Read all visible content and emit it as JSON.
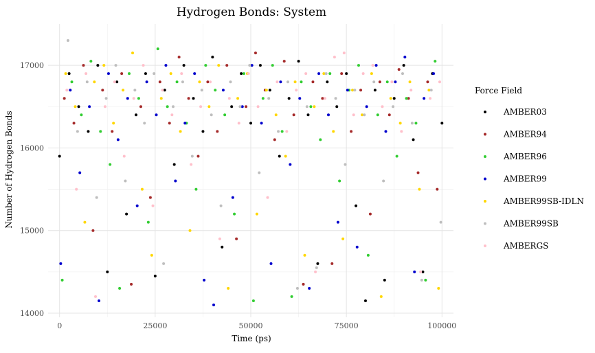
{
  "chart_data": {
    "type": "scatter",
    "title": "Hydrogen Bonds: System",
    "xlabel": "Time (ps)",
    "ylabel": "Number of Hydrogen Bonds",
    "xlim": [
      -3000,
      103000
    ],
    "ylim": [
      13950,
      17500
    ],
    "xticks": [
      0,
      25000,
      50000,
      75000,
      100000
    ],
    "xtick_labels": [
      "0",
      "25000",
      "50000",
      "75000",
      "100000"
    ],
    "yticks": [
      14000,
      15000,
      16000,
      17000
    ],
    "ytick_labels": [
      "14000",
      "15000",
      "16000",
      "17000"
    ],
    "grid": true,
    "legend": {
      "title": "Force Field",
      "position": "right"
    },
    "series": [
      {
        "name": "AMBER03",
        "color": "#000000",
        "x": [
          0,
          2500,
          5000,
          7500,
          10000,
          12500,
          15000,
          17500,
          20000,
          22500,
          25000,
          27500,
          30000,
          32500,
          35000,
          37500,
          40000,
          42500,
          45000,
          47500,
          50000,
          52500,
          55000,
          57500,
          60000,
          62500,
          65000,
          67500,
          70000,
          72500,
          75000,
          77500,
          80000,
          82500,
          85000,
          87500,
          90000,
          92500,
          95000,
          97500,
          100000
        ],
        "y": [
          15900,
          16900,
          16500,
          16200,
          17000,
          14500,
          16800,
          15200,
          16400,
          16900,
          14450,
          16700,
          15800,
          17000,
          16600,
          16200,
          17100,
          14800,
          16500,
          16900,
          16300,
          17000,
          16700,
          15900,
          16600,
          17050,
          16400,
          14600,
          16800,
          16500,
          16900,
          15300,
          14150,
          16700,
          14400,
          16600,
          17000,
          16100,
          14500,
          16900,
          16300
        ]
      },
      {
        "name": "AMBER94",
        "color": "#a52a2a",
        "x": [
          1250,
          3750,
          6250,
          8750,
          11250,
          13750,
          16250,
          18750,
          21250,
          23750,
          26250,
          28750,
          31250,
          33750,
          36250,
          38750,
          41250,
          43750,
          46250,
          48750,
          51250,
          53750,
          56250,
          58750,
          61250,
          63750,
          66250,
          68750,
          71250,
          73750,
          76250,
          78750,
          81250,
          83750,
          86250,
          88750,
          91250,
          93750,
          96250,
          98750
        ],
        "y": [
          16600,
          16300,
          17000,
          15000,
          16700,
          16200,
          16900,
          14350,
          16500,
          15400,
          16800,
          16300,
          17100,
          16600,
          15900,
          16800,
          16200,
          17000,
          14900,
          16500,
          17150,
          16700,
          16100,
          17050,
          16400,
          14350,
          16800,
          16600,
          14600,
          16900,
          16200,
          16700,
          15200,
          16800,
          16400,
          16950,
          16600,
          15700,
          16800,
          15500
        ]
      },
      {
        "name": "AMBER96",
        "color": "#32cd32",
        "x": [
          700,
          3200,
          5700,
          8200,
          10700,
          13200,
          15700,
          18200,
          20700,
          23200,
          25700,
          28200,
          30700,
          33200,
          35700,
          38200,
          40700,
          43200,
          45700,
          48200,
          50700,
          53200,
          55700,
          58200,
          60700,
          63200,
          65700,
          68200,
          70700,
          73200,
          75700,
          78200,
          80700,
          83200,
          85700,
          88200,
          90700,
          93200,
          95700,
          98200
        ],
        "y": [
          14400,
          16800,
          16400,
          17050,
          16200,
          15800,
          14300,
          16900,
          16600,
          15100,
          17200,
          16500,
          16800,
          16300,
          15500,
          17000,
          16700,
          16400,
          15200,
          16900,
          14150,
          16600,
          17000,
          16200,
          14200,
          16800,
          16500,
          16100,
          16900,
          15600,
          16700,
          17000,
          14700,
          16400,
          16800,
          15900,
          16600,
          16300,
          14400,
          17050
        ]
      },
      {
        "name": "AMBER99",
        "color": "#0000cd",
        "x": [
          300,
          2800,
          5300,
          7800,
          10300,
          12800,
          15300,
          17800,
          20300,
          22800,
          25300,
          27800,
          30300,
          32800,
          35300,
          37800,
          40300,
          42800,
          45300,
          47800,
          50300,
          52800,
          55300,
          57800,
          60300,
          62800,
          65300,
          67800,
          70300,
          72800,
          75300,
          77800,
          80300,
          82800,
          85300,
          87800,
          90300,
          92800,
          95300,
          97800
        ],
        "y": [
          14600,
          16700,
          15700,
          16500,
          14150,
          16900,
          16100,
          16600,
          15300,
          16800,
          16400,
          17000,
          15600,
          16300,
          16900,
          14400,
          14100,
          16700,
          15400,
          16500,
          17000,
          16300,
          14600,
          16800,
          15800,
          16600,
          14300,
          16900,
          16400,
          15100,
          16700,
          14800,
          16500,
          17000,
          16200,
          16800,
          17100,
          14500,
          16600,
          16900
        ]
      },
      {
        "name": "AMBER99SB-IDLN",
        "color": "#ffd700",
        "x": [
          1600,
          4100,
          6600,
          9100,
          11600,
          14100,
          16600,
          19100,
          21600,
          24100,
          26600,
          29100,
          31600,
          34100,
          36600,
          39100,
          41600,
          44100,
          46600,
          49100,
          51600,
          54100,
          56600,
          59100,
          61600,
          64100,
          66600,
          69100,
          71600,
          74100,
          76600,
          79100,
          81600,
          84100,
          86600,
          89100,
          91600,
          94100,
          96600,
          99100
        ],
        "y": [
          16900,
          16500,
          15100,
          16800,
          17000,
          16300,
          16700,
          17150,
          15500,
          14700,
          16600,
          16900,
          16200,
          15000,
          16800,
          16500,
          17000,
          14300,
          16600,
          16900,
          15200,
          16700,
          16400,
          15900,
          16800,
          14700,
          16500,
          16900,
          16200,
          14900,
          16700,
          16400,
          16900,
          14200,
          16600,
          16300,
          16800,
          15500,
          16700,
          14300
        ]
      },
      {
        "name": "AMBER99SB",
        "color": "#bebebe",
        "x": [
          2200,
          4700,
          7200,
          9700,
          12200,
          14700,
          17200,
          19700,
          22200,
          24700,
          27200,
          29700,
          32200,
          34700,
          37200,
          39700,
          42200,
          44700,
          47200,
          49700,
          52200,
          54700,
          57200,
          59700,
          62200,
          64700,
          67200,
          69700,
          72200,
          74700,
          77200,
          79700,
          82200,
          84700,
          87200,
          89700,
          92200,
          94700,
          97200,
          99700
        ],
        "y": [
          17300,
          16200,
          16800,
          15400,
          16600,
          17000,
          15600,
          16700,
          16300,
          16900,
          14600,
          16500,
          16800,
          15900,
          16700,
          16400,
          15300,
          16800,
          16500,
          17000,
          15700,
          16600,
          16200,
          16800,
          14300,
          16500,
          14550,
          16900,
          16600,
          15800,
          16700,
          16400,
          16800,
          15600,
          16500,
          16900,
          16300,
          14400,
          16700,
          15100
        ]
      },
      {
        "name": "AMBERGS",
        "color": "#ffc0cb",
        "x": [
          1900,
          4400,
          6900,
          9400,
          11900,
          14400,
          16900,
          19400,
          21900,
          24400,
          26900,
          29400,
          31900,
          34400,
          36900,
          39400,
          41900,
          44400,
          46900,
          49400,
          51900,
          54400,
          56900,
          59400,
          61900,
          64400,
          66900,
          69400,
          71900,
          74400,
          76900,
          79400,
          81900,
          84400,
          86900,
          89400,
          91900,
          94400,
          96900,
          99400
        ],
        "y": [
          16700,
          15500,
          16900,
          14200,
          16500,
          16800,
          15900,
          16600,
          17000,
          15300,
          16700,
          16400,
          16900,
          15800,
          16500,
          16800,
          14900,
          16600,
          16300,
          16900,
          16500,
          15400,
          16800,
          16200,
          16700,
          16900,
          14500,
          16600,
          17100,
          17150,
          16400,
          16900,
          17000,
          16500,
          16800,
          16200,
          16700,
          14500,
          16600,
          16800
        ]
      }
    ]
  }
}
